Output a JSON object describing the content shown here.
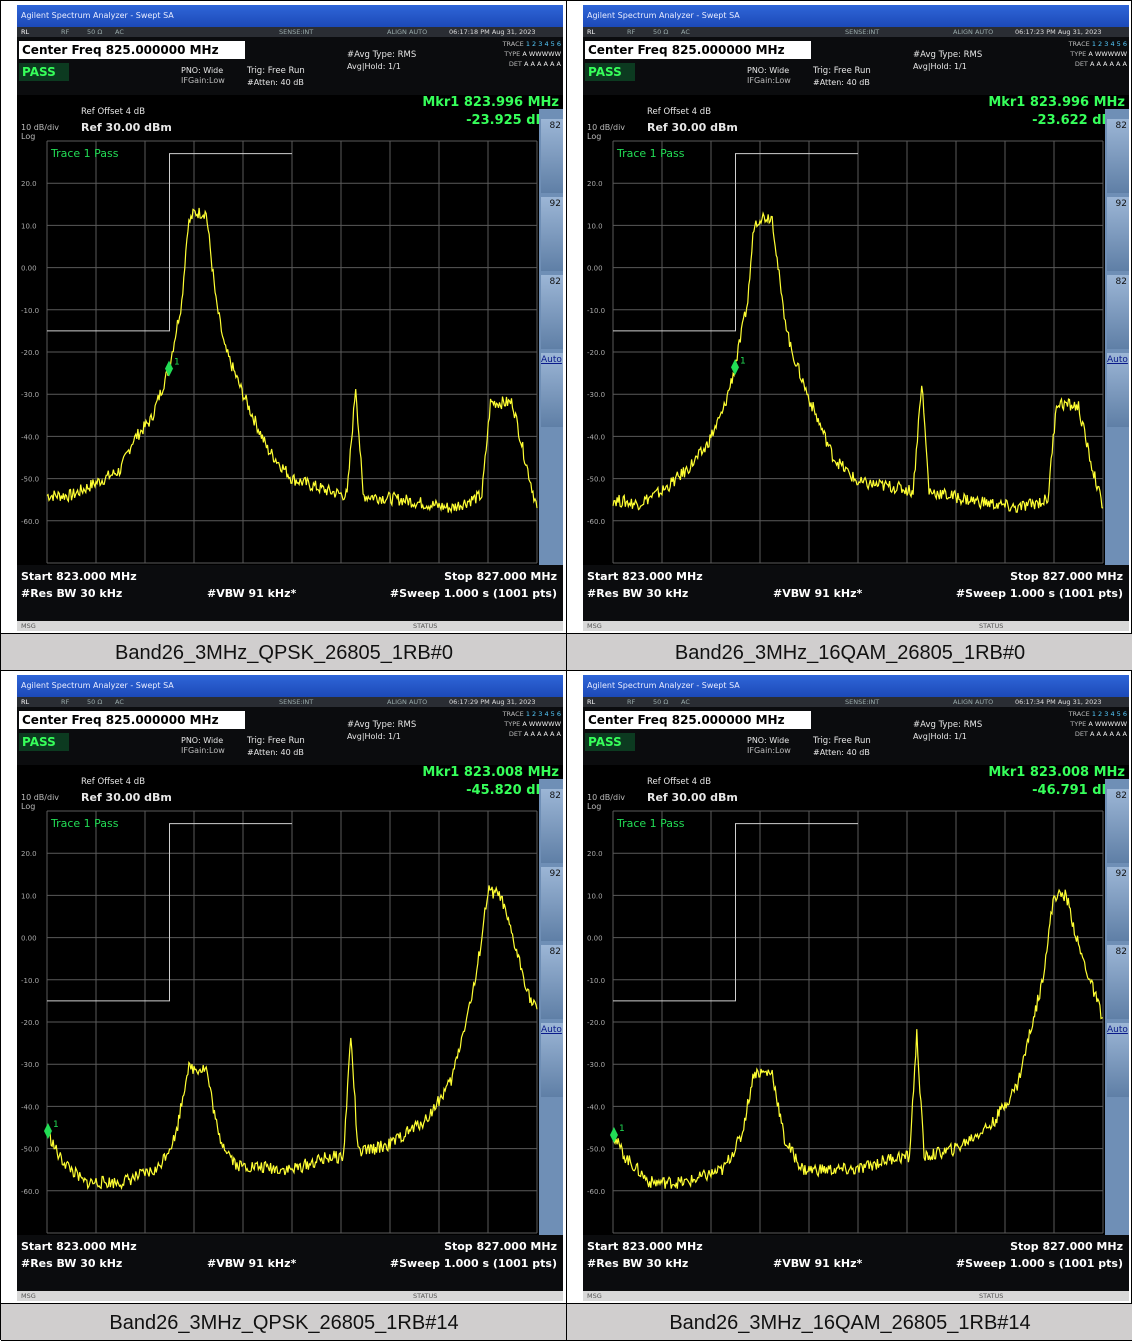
{
  "shared": {
    "window_title": "Agilent Spectrum Analyzer - Swept SA",
    "status": {
      "rl": "RL",
      "rf": "RF",
      "ohm": "50 Ω",
      "ac": "AC",
      "sense": "SENSE:INT",
      "align": "ALIGN AUTO"
    },
    "center_freq": "Center Freq 825.000000 MHz",
    "pass": "PASS",
    "pno": "PNO: Wide",
    "ifgain": "IFGain:Low",
    "trig": "Trig: Free Run",
    "atten": "#Atten: 40 dB",
    "avg_type": "#Avg Type: RMS",
    "avg_hold": "Avg|Hold: 1/1",
    "trace_labels": {
      "trace": "TRACE",
      "type": "TYPE",
      "det": "DET",
      "trace_nums": "1 2 3 4 5 6",
      "type_vals": "A WWWWW",
      "det_vals": "A A A A A A"
    },
    "ref_offset": "Ref Offset 4 dB",
    "scale": "10 dB/div",
    "ref_level": "Ref 30.00 dBm",
    "log": "Log",
    "trace_pass": "Trace 1 Pass",
    "y_ticks": [
      "20.0",
      "10.0",
      "0.00",
      "-10.0",
      "-20.0",
      "-30.0",
      "-40.0",
      "-50.0",
      "-60.0"
    ],
    "start": "Start 823.000 MHz",
    "stop": "Stop 827.000 MHz",
    "rbw": "#Res BW 30 kHz",
    "vbw": "#VBW 91 kHz*",
    "sweep": "#Sweep  1.000 s (1001 pts)",
    "msg": "MSG",
    "status_label": "STATUS",
    "softkeys": [
      "82",
      "92",
      "82",
      "Auto"
    ],
    "colors": {
      "trace": "#ffff33",
      "grid": "#5a5a5a",
      "marker": "#22dd55",
      "limit": "#cfcfcf"
    }
  },
  "panels": [
    {
      "caption": "Band26_3MHz_QPSK_26805_1RB#0",
      "timestamp": "06:17:18 PM Aug 31, 2023",
      "marker": {
        "label": "Mkr1 823.996 MHz",
        "value": "-23.925 dBm",
        "num": "1"
      },
      "chart_data": {
        "type": "line",
        "x_range_mhz": [
          823.0,
          827.0
        ],
        "ylim_dbm": [
          -70,
          30
        ],
        "marker_point": [
          823.996,
          -23.925
        ],
        "series": [
          {
            "values": [
              [
                823.0,
                -54
              ],
              [
                823.2,
                -54
              ],
              [
                823.4,
                -51
              ],
              [
                823.6,
                -48
              ],
              [
                823.7,
                -41
              ],
              [
                823.85,
                -36
              ],
              [
                823.996,
                -23.9
              ],
              [
                824.1,
                -8
              ],
              [
                824.15,
                10
              ],
              [
                824.2,
                13
              ],
              [
                824.3,
                13
              ],
              [
                824.38,
                -8
              ],
              [
                824.45,
                -19
              ],
              [
                824.6,
                -30
              ],
              [
                824.8,
                -43
              ],
              [
                825.0,
                -50
              ],
              [
                825.3,
                -53
              ],
              [
                825.45,
                -54
              ],
              [
                825.52,
                -28
              ],
              [
                825.58,
                -54
              ],
              [
                825.9,
                -55
              ],
              [
                826.3,
                -57
              ],
              [
                826.55,
                -54
              ],
              [
                826.62,
                -32
              ],
              [
                826.8,
                -32
              ],
              [
                826.9,
                -45
              ],
              [
                827.0,
                -57
              ]
            ]
          }
        ],
        "limit_line": [
          [
            823.0,
            -15
          ],
          [
            824.0,
            -15
          ],
          [
            824.0,
            27
          ],
          [
            825.0,
            27
          ]
        ]
      }
    },
    {
      "caption": "Band26_3MHz_16QAM_26805_1RB#0",
      "timestamp": "06:17:23 PM Aug 31, 2023",
      "marker": {
        "label": "Mkr1 823.996 MHz",
        "value": "-23.622 dBm",
        "num": "1"
      },
      "chart_data": {
        "type": "line",
        "x_range_mhz": [
          823.0,
          827.0
        ],
        "ylim_dbm": [
          -70,
          30
        ],
        "marker_point": [
          823.996,
          -23.622
        ],
        "series": [
          {
            "values": [
              [
                823.0,
                -55
              ],
              [
                823.2,
                -56
              ],
              [
                823.4,
                -53
              ],
              [
                823.6,
                -48
              ],
              [
                823.75,
                -43
              ],
              [
                823.9,
                -34
              ],
              [
                823.996,
                -23.6
              ],
              [
                824.1,
                -8
              ],
              [
                824.15,
                10
              ],
              [
                824.2,
                12
              ],
              [
                824.3,
                12
              ],
              [
                824.38,
                -8
              ],
              [
                824.45,
                -19
              ],
              [
                824.6,
                -31
              ],
              [
                824.8,
                -45
              ],
              [
                825.0,
                -51
              ],
              [
                825.3,
                -52
              ],
              [
                825.45,
                -53
              ],
              [
                825.52,
                -27
              ],
              [
                825.58,
                -53
              ],
              [
                825.9,
                -55
              ],
              [
                826.3,
                -57
              ],
              [
                826.55,
                -55
              ],
              [
                826.62,
                -32
              ],
              [
                826.8,
                -33
              ],
              [
                826.9,
                -46
              ],
              [
                827.0,
                -57
              ]
            ]
          }
        ],
        "limit_line": [
          [
            823.0,
            -15
          ],
          [
            824.0,
            -15
          ],
          [
            824.0,
            27
          ],
          [
            825.0,
            27
          ]
        ]
      }
    },
    {
      "caption": "Band26_3MHz_QPSK_26805_1RB#14",
      "timestamp": "06:17:29 PM Aug 31, 2023",
      "marker": {
        "label": "Mkr1 823.008 MHz",
        "value": "-45.820 dBm",
        "num": "1"
      },
      "chart_data": {
        "type": "line",
        "x_range_mhz": [
          823.0,
          827.0
        ],
        "ylim_dbm": [
          -70,
          30
        ],
        "marker_point": [
          823.008,
          -45.82
        ],
        "series": [
          {
            "values": [
              [
                823.0,
                -45.8
              ],
              [
                823.1,
                -52
              ],
              [
                823.3,
                -58
              ],
              [
                823.6,
                -58
              ],
              [
                823.9,
                -55
              ],
              [
                824.05,
                -47
              ],
              [
                824.15,
                -31
              ],
              [
                824.3,
                -31
              ],
              [
                824.4,
                -47
              ],
              [
                824.55,
                -54
              ],
              [
                825.0,
                -55
              ],
              [
                825.3,
                -52
              ],
              [
                825.42,
                -52
              ],
              [
                825.48,
                -23
              ],
              [
                825.54,
                -51
              ],
              [
                825.8,
                -49
              ],
              [
                826.1,
                -43
              ],
              [
                826.3,
                -34
              ],
              [
                826.5,
                -10
              ],
              [
                826.6,
                11
              ],
              [
                826.7,
                10
              ],
              [
                826.8,
                0
              ],
              [
                826.95,
                -15
              ],
              [
                827.0,
                -17
              ]
            ]
          }
        ],
        "limit_line": [
          [
            823.0,
            -15
          ],
          [
            824.0,
            -15
          ],
          [
            824.0,
            27
          ],
          [
            825.0,
            27
          ]
        ]
      }
    },
    {
      "caption": "Band26_3MHz_16QAM_26805_1RB#14",
      "timestamp": "06:17:34 PM Aug 31, 2023",
      "marker": {
        "label": "Mkr1 823.008 MHz",
        "value": "-46.791 dBm",
        "num": "1"
      },
      "chart_data": {
        "type": "line",
        "x_range_mhz": [
          823.0,
          827.0
        ],
        "ylim_dbm": [
          -70,
          30
        ],
        "marker_point": [
          823.008,
          -46.791
        ],
        "series": [
          {
            "values": [
              [
                823.0,
                -46.8
              ],
              [
                823.1,
                -52
              ],
              [
                823.3,
                -58
              ],
              [
                823.6,
                -58
              ],
              [
                823.9,
                -55
              ],
              [
                824.05,
                -47
              ],
              [
                824.15,
                -32
              ],
              [
                824.3,
                -32
              ],
              [
                824.4,
                -48
              ],
              [
                824.55,
                -55
              ],
              [
                825.0,
                -55
              ],
              [
                825.3,
                -52
              ],
              [
                825.42,
                -52
              ],
              [
                825.48,
                -23
              ],
              [
                825.54,
                -52
              ],
              [
                825.8,
                -50
              ],
              [
                826.1,
                -44
              ],
              [
                826.3,
                -35
              ],
              [
                826.5,
                -11
              ],
              [
                826.6,
                10
              ],
              [
                826.7,
                10
              ],
              [
                826.8,
                -2
              ],
              [
                826.95,
                -15
              ],
              [
                827.0,
                -19
              ]
            ]
          }
        ],
        "limit_line": [
          [
            823.0,
            -15
          ],
          [
            824.0,
            -15
          ],
          [
            824.0,
            27
          ],
          [
            825.0,
            27
          ]
        ]
      }
    }
  ]
}
